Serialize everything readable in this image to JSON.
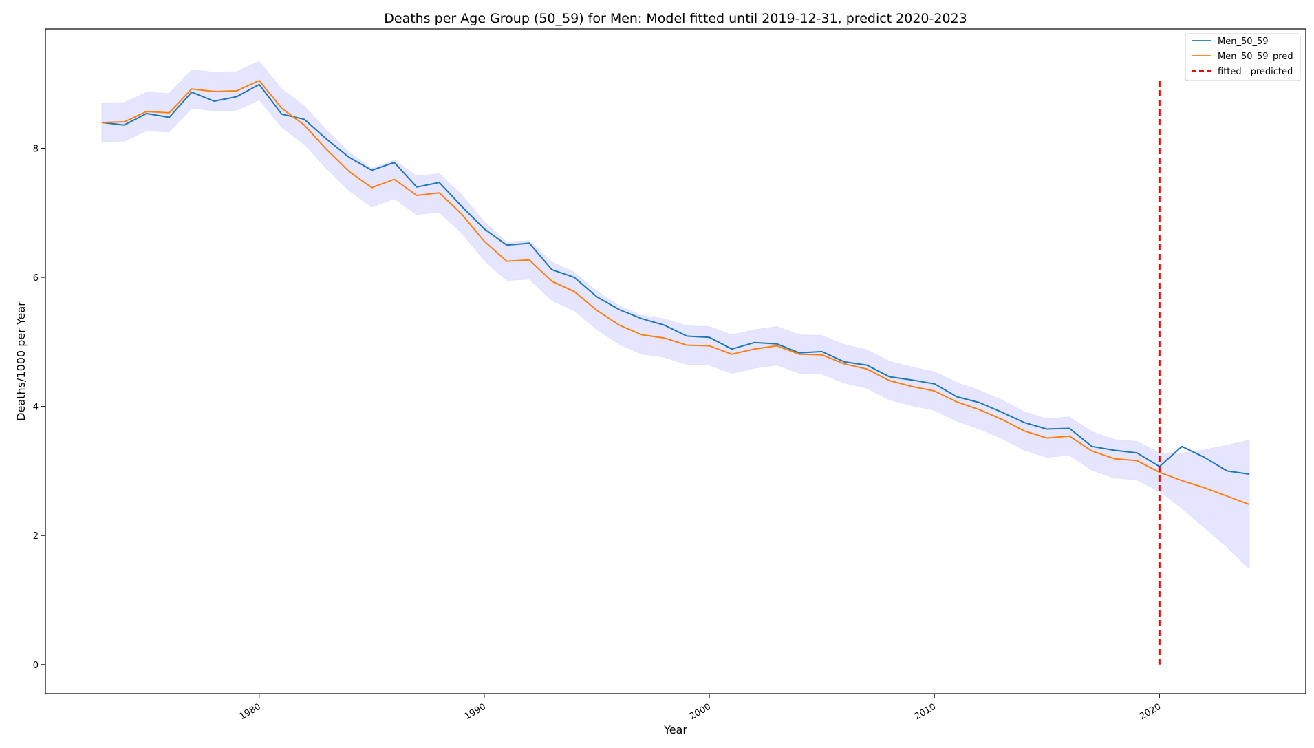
{
  "chart_data": {
    "type": "line",
    "title": "Deaths per Age Group (50_59) for Men: Model fitted until 2019-12-31, predict 2020-2023",
    "xlabel": "Year",
    "ylabel": "Deaths/1000 per Year",
    "xlim": [
      1970.5,
      2026.5
    ],
    "ylim": [
      -0.45,
      9.85
    ],
    "xticks": [
      1980,
      1990,
      2000,
      2010,
      2020
    ],
    "yticks": [
      0,
      2,
      4,
      6,
      8
    ],
    "grid": false,
    "legend_position": "top-right",
    "colors": {
      "actual": "#1f77b4",
      "predicted": "#ff7f0e",
      "band": "#0000ff",
      "vline": "#ff0000"
    },
    "x": [
      1973,
      1974,
      1975,
      1976,
      1977,
      1978,
      1979,
      1980,
      1981,
      1982,
      1983,
      1984,
      1985,
      1986,
      1987,
      1988,
      1989,
      1990,
      1991,
      1992,
      1993,
      1994,
      1995,
      1996,
      1997,
      1998,
      1999,
      2000,
      2001,
      2002,
      2003,
      2004,
      2005,
      2006,
      2007,
      2008,
      2009,
      2010,
      2011,
      2012,
      2013,
      2014,
      2015,
      2016,
      2017,
      2018,
      2019,
      2020,
      2021,
      2022,
      2023,
      2024
    ],
    "series": [
      {
        "name": "Men_50_59",
        "color": "#1f77b4",
        "values": [
          8.4,
          8.36,
          8.54,
          8.48,
          8.87,
          8.73,
          8.8,
          8.99,
          8.53,
          8.45,
          8.14,
          7.86,
          7.66,
          7.78,
          7.4,
          7.47,
          7.1,
          6.75,
          6.5,
          6.53,
          6.12,
          6.0,
          5.7,
          5.5,
          5.36,
          5.26,
          5.09,
          5.07,
          4.89,
          4.99,
          4.97,
          4.83,
          4.85,
          4.69,
          4.64,
          4.46,
          4.41,
          4.35,
          4.15,
          4.06,
          3.91,
          3.75,
          3.65,
          3.66,
          3.38,
          3.32,
          3.28,
          3.07,
          3.38,
          3.21,
          3.0,
          2.95
        ]
      },
      {
        "name": "Men_50_59_pred",
        "color": "#ff7f0e",
        "values": [
          8.4,
          8.41,
          8.57,
          8.55,
          8.92,
          8.88,
          8.89,
          9.05,
          8.62,
          8.36,
          7.98,
          7.64,
          7.39,
          7.52,
          7.27,
          7.31,
          6.98,
          6.56,
          6.25,
          6.27,
          5.94,
          5.78,
          5.49,
          5.26,
          5.11,
          5.06,
          4.95,
          4.94,
          4.81,
          4.89,
          4.94,
          4.81,
          4.8,
          4.66,
          4.58,
          4.4,
          4.31,
          4.24,
          4.07,
          3.95,
          3.8,
          3.62,
          3.51,
          3.54,
          3.31,
          3.19,
          3.16,
          2.98,
          2.85,
          2.74,
          2.61,
          2.48
        ]
      }
    ],
    "confidence_band": {
      "lower": [
        8.1,
        8.11,
        8.27,
        8.25,
        8.62,
        8.58,
        8.59,
        8.75,
        8.32,
        8.06,
        7.68,
        7.34,
        7.09,
        7.22,
        6.97,
        7.01,
        6.68,
        6.26,
        5.95,
        5.97,
        5.64,
        5.48,
        5.19,
        4.96,
        4.81,
        4.76,
        4.65,
        4.64,
        4.51,
        4.59,
        4.64,
        4.51,
        4.5,
        4.36,
        4.28,
        4.1,
        4.01,
        3.94,
        3.77,
        3.65,
        3.5,
        3.32,
        3.21,
        3.24,
        3.01,
        2.89,
        2.86,
        2.68,
        2.42,
        2.12,
        1.82,
        1.48
      ],
      "upper": [
        8.7,
        8.71,
        8.87,
        8.85,
        9.22,
        9.18,
        9.19,
        9.35,
        8.92,
        8.66,
        8.28,
        7.94,
        7.69,
        7.82,
        7.57,
        7.61,
        7.28,
        6.86,
        6.55,
        6.57,
        6.24,
        6.08,
        5.79,
        5.56,
        5.41,
        5.36,
        5.25,
        5.24,
        5.11,
        5.19,
        5.24,
        5.11,
        5.1,
        4.96,
        4.88,
        4.7,
        4.61,
        4.54,
        4.37,
        4.25,
        4.1,
        3.92,
        3.81,
        3.84,
        3.61,
        3.49,
        3.46,
        3.28,
        3.28,
        3.33,
        3.4,
        3.48
      ]
    },
    "vline": {
      "name": "fitted - predicted",
      "x": 2020,
      "ymin": 0,
      "ymax": 9.05,
      "color": "#ff0000",
      "style": "dashed"
    }
  }
}
